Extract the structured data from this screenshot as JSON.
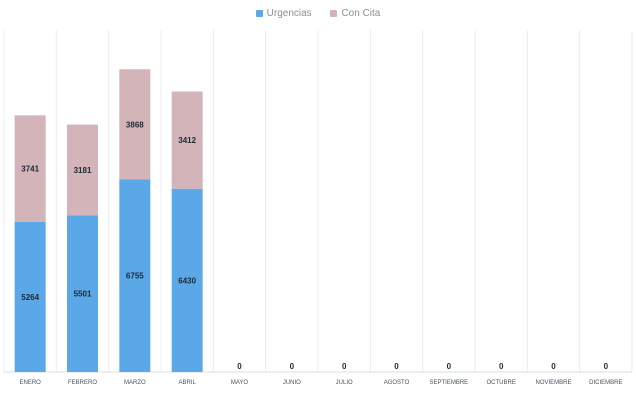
{
  "chart_data": {
    "type": "bar",
    "stacked": true,
    "categories": [
      "ENERO",
      "FEBRERO",
      "MARZO",
      "ABRIL",
      "MAYO",
      "JUNIO",
      "JULIO",
      "AGOSTO",
      "SEPTIEMBRE",
      "OCTUBRE",
      "NOVIEMBRE",
      "DICIEMBRE"
    ],
    "series": [
      {
        "name": "Urgencias",
        "color": "#5aa8e8",
        "values": [
          5264,
          5501,
          6755,
          6430,
          0,
          0,
          0,
          0,
          0,
          0,
          0,
          0
        ]
      },
      {
        "name": "Con Cita",
        "color": "#d2b4b9",
        "values": [
          3741,
          3181,
          3868,
          3412,
          0,
          0,
          0,
          0,
          0,
          0,
          0,
          0
        ]
      }
    ],
    "ylim": [
      0,
      12000
    ],
    "grid": {
      "vertical": true,
      "horizontal": false
    },
    "legend": "top-center",
    "data_labels": true
  }
}
